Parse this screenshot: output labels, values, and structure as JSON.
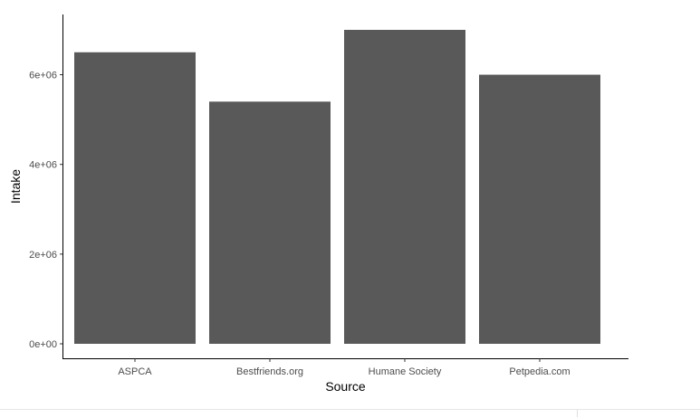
{
  "chart_data": {
    "type": "bar",
    "categories": [
      "ASPCA",
      "Bestfriends.org",
      "Humane Society",
      "Petpedia.com"
    ],
    "values": [
      6500000,
      5400000,
      7000000,
      6000000
    ],
    "xlabel": "Source",
    "ylabel": "Intake",
    "ylim": [
      0,
      7000000
    ],
    "y_ticks": [
      0,
      2000000,
      4000000,
      6000000
    ],
    "y_tick_labels": [
      "0e+00",
      "2e+06",
      "4e+06",
      "6e+06"
    ],
    "bar_color": "#595959",
    "grid": false
  }
}
